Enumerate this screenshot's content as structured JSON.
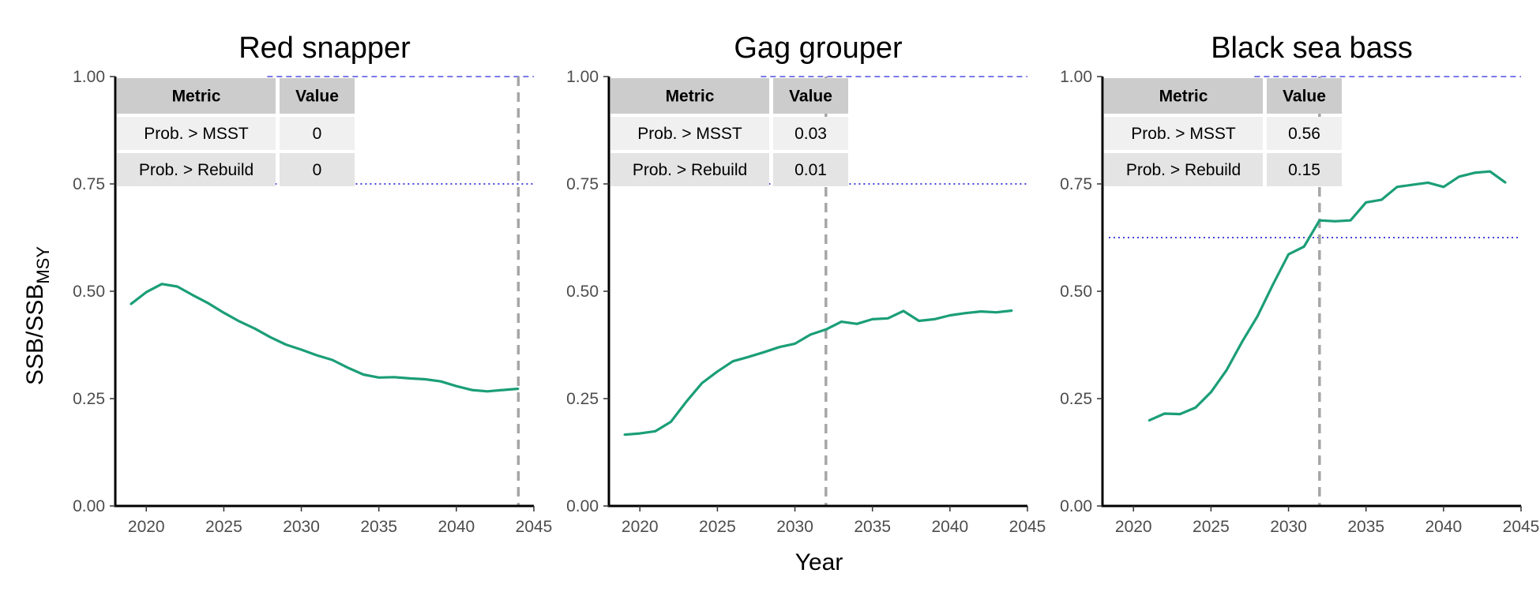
{
  "figure": {
    "xlabel": "Year",
    "ylabel_main": "SSB/SSB",
    "ylabel_sub": "MSY"
  },
  "colors": {
    "line": "#1b9e77",
    "msst_line": "#2b2bd9",
    "rebuild_line": "#2b2bd9",
    "rebuild_year_line": "#a6a6a6",
    "table_header": "#cccccc",
    "table_row1": "#f0f0f0",
    "table_row2": "#e4e4e4"
  },
  "chart_data": [
    {
      "type": "line",
      "title": "Red snapper",
      "xlim": [
        2018,
        2045
      ],
      "ylim": [
        0,
        1
      ],
      "x_ticks": [
        2020,
        2025,
        2030,
        2035,
        2040,
        2045
      ],
      "y_ticks": [
        0.0,
        0.25,
        0.5,
        0.75,
        1.0
      ],
      "y_tick_labels": [
        "0.00",
        "0.25",
        "0.50",
        "0.75",
        "1.00"
      ],
      "reference_lines": {
        "msst_level": 1.0,
        "rebuild_level": 0.75,
        "rebuild_year": 2044
      },
      "table": {
        "headers": [
          "Metric",
          "Value"
        ],
        "rows": [
          [
            "Prob. > MSST",
            "0"
          ],
          [
            "Prob. > Rebuild",
            "0"
          ]
        ]
      },
      "series": [
        {
          "x": [
            2019,
            2020,
            2021,
            2022,
            2023,
            2024,
            2025,
            2026,
            2027,
            2028,
            2029,
            2030,
            2031,
            2032,
            2033,
            2034,
            2035,
            2036,
            2037,
            2038,
            2039,
            2040,
            2041,
            2042,
            2043,
            2044
          ],
          "values": [
            0.47,
            0.498,
            0.517,
            0.511,
            0.491,
            0.472,
            0.45,
            0.43,
            0.413,
            0.393,
            0.376,
            0.364,
            0.351,
            0.34,
            0.322,
            0.306,
            0.299,
            0.3,
            0.297,
            0.295,
            0.29,
            0.279,
            0.27,
            0.267,
            0.27,
            0.273
          ]
        }
      ]
    },
    {
      "type": "line",
      "title": "Gag grouper",
      "xlim": [
        2018,
        2045
      ],
      "ylim": [
        0,
        1
      ],
      "x_ticks": [
        2020,
        2025,
        2030,
        2035,
        2040,
        2045
      ],
      "y_ticks": [
        0.0,
        0.25,
        0.5,
        0.75,
        1.0
      ],
      "y_tick_labels": [
        "0.00",
        "0.25",
        "0.50",
        "0.75",
        "1.00"
      ],
      "reference_lines": {
        "msst_level": 1.0,
        "rebuild_level": 0.75,
        "rebuild_year": 2032
      },
      "table": {
        "headers": [
          "Metric",
          "Value"
        ],
        "rows": [
          [
            "Prob. > MSST",
            "0.03"
          ],
          [
            "Prob. > Rebuild",
            "0.01"
          ]
        ]
      },
      "series": [
        {
          "x": [
            2019,
            2020,
            2021,
            2022,
            2023,
            2024,
            2025,
            2026,
            2027,
            2028,
            2029,
            2030,
            2031,
            2032,
            2033,
            2034,
            2035,
            2036,
            2037,
            2038,
            2039,
            2040,
            2041,
            2042,
            2043,
            2044
          ],
          "values": [
            0.166,
            0.169,
            0.174,
            0.196,
            0.243,
            0.286,
            0.313,
            0.337,
            0.347,
            0.358,
            0.37,
            0.378,
            0.399,
            0.411,
            0.429,
            0.424,
            0.435,
            0.437,
            0.454,
            0.431,
            0.435,
            0.444,
            0.449,
            0.453,
            0.451,
            0.455
          ]
        }
      ]
    },
    {
      "type": "line",
      "title": "Black sea bass",
      "xlim": [
        2018,
        2045
      ],
      "ylim": [
        0,
        1
      ],
      "x_ticks": [
        2020,
        2025,
        2030,
        2035,
        2040,
        2045
      ],
      "y_ticks": [
        0.0,
        0.25,
        0.5,
        0.75,
        1.0
      ],
      "y_tick_labels": [
        "0.00",
        "0.25",
        "0.50",
        "0.75",
        "1.00"
      ],
      "reference_lines": {
        "msst_level": 1.0,
        "rebuild_level": 0.625,
        "rebuild_year": 2032
      },
      "table": {
        "headers": [
          "Metric",
          "Value"
        ],
        "rows": [
          [
            "Prob. > MSST",
            "0.56"
          ],
          [
            "Prob. > Rebuild",
            "0.15"
          ]
        ]
      },
      "series": [
        {
          "x": [
            2021,
            2022,
            2023,
            2024,
            2025,
            2026,
            2027,
            2028,
            2029,
            2030,
            2031,
            2032,
            2033,
            2034,
            2035,
            2036,
            2037,
            2038,
            2039,
            2040,
            2041,
            2042,
            2043,
            2044
          ],
          "values": [
            0.199,
            0.215,
            0.214,
            0.229,
            0.265,
            0.316,
            0.382,
            0.442,
            0.516,
            0.586,
            0.604,
            0.665,
            0.663,
            0.665,
            0.707,
            0.713,
            0.743,
            0.748,
            0.753,
            0.743,
            0.767,
            0.776,
            0.779,
            0.753
          ]
        }
      ]
    }
  ]
}
